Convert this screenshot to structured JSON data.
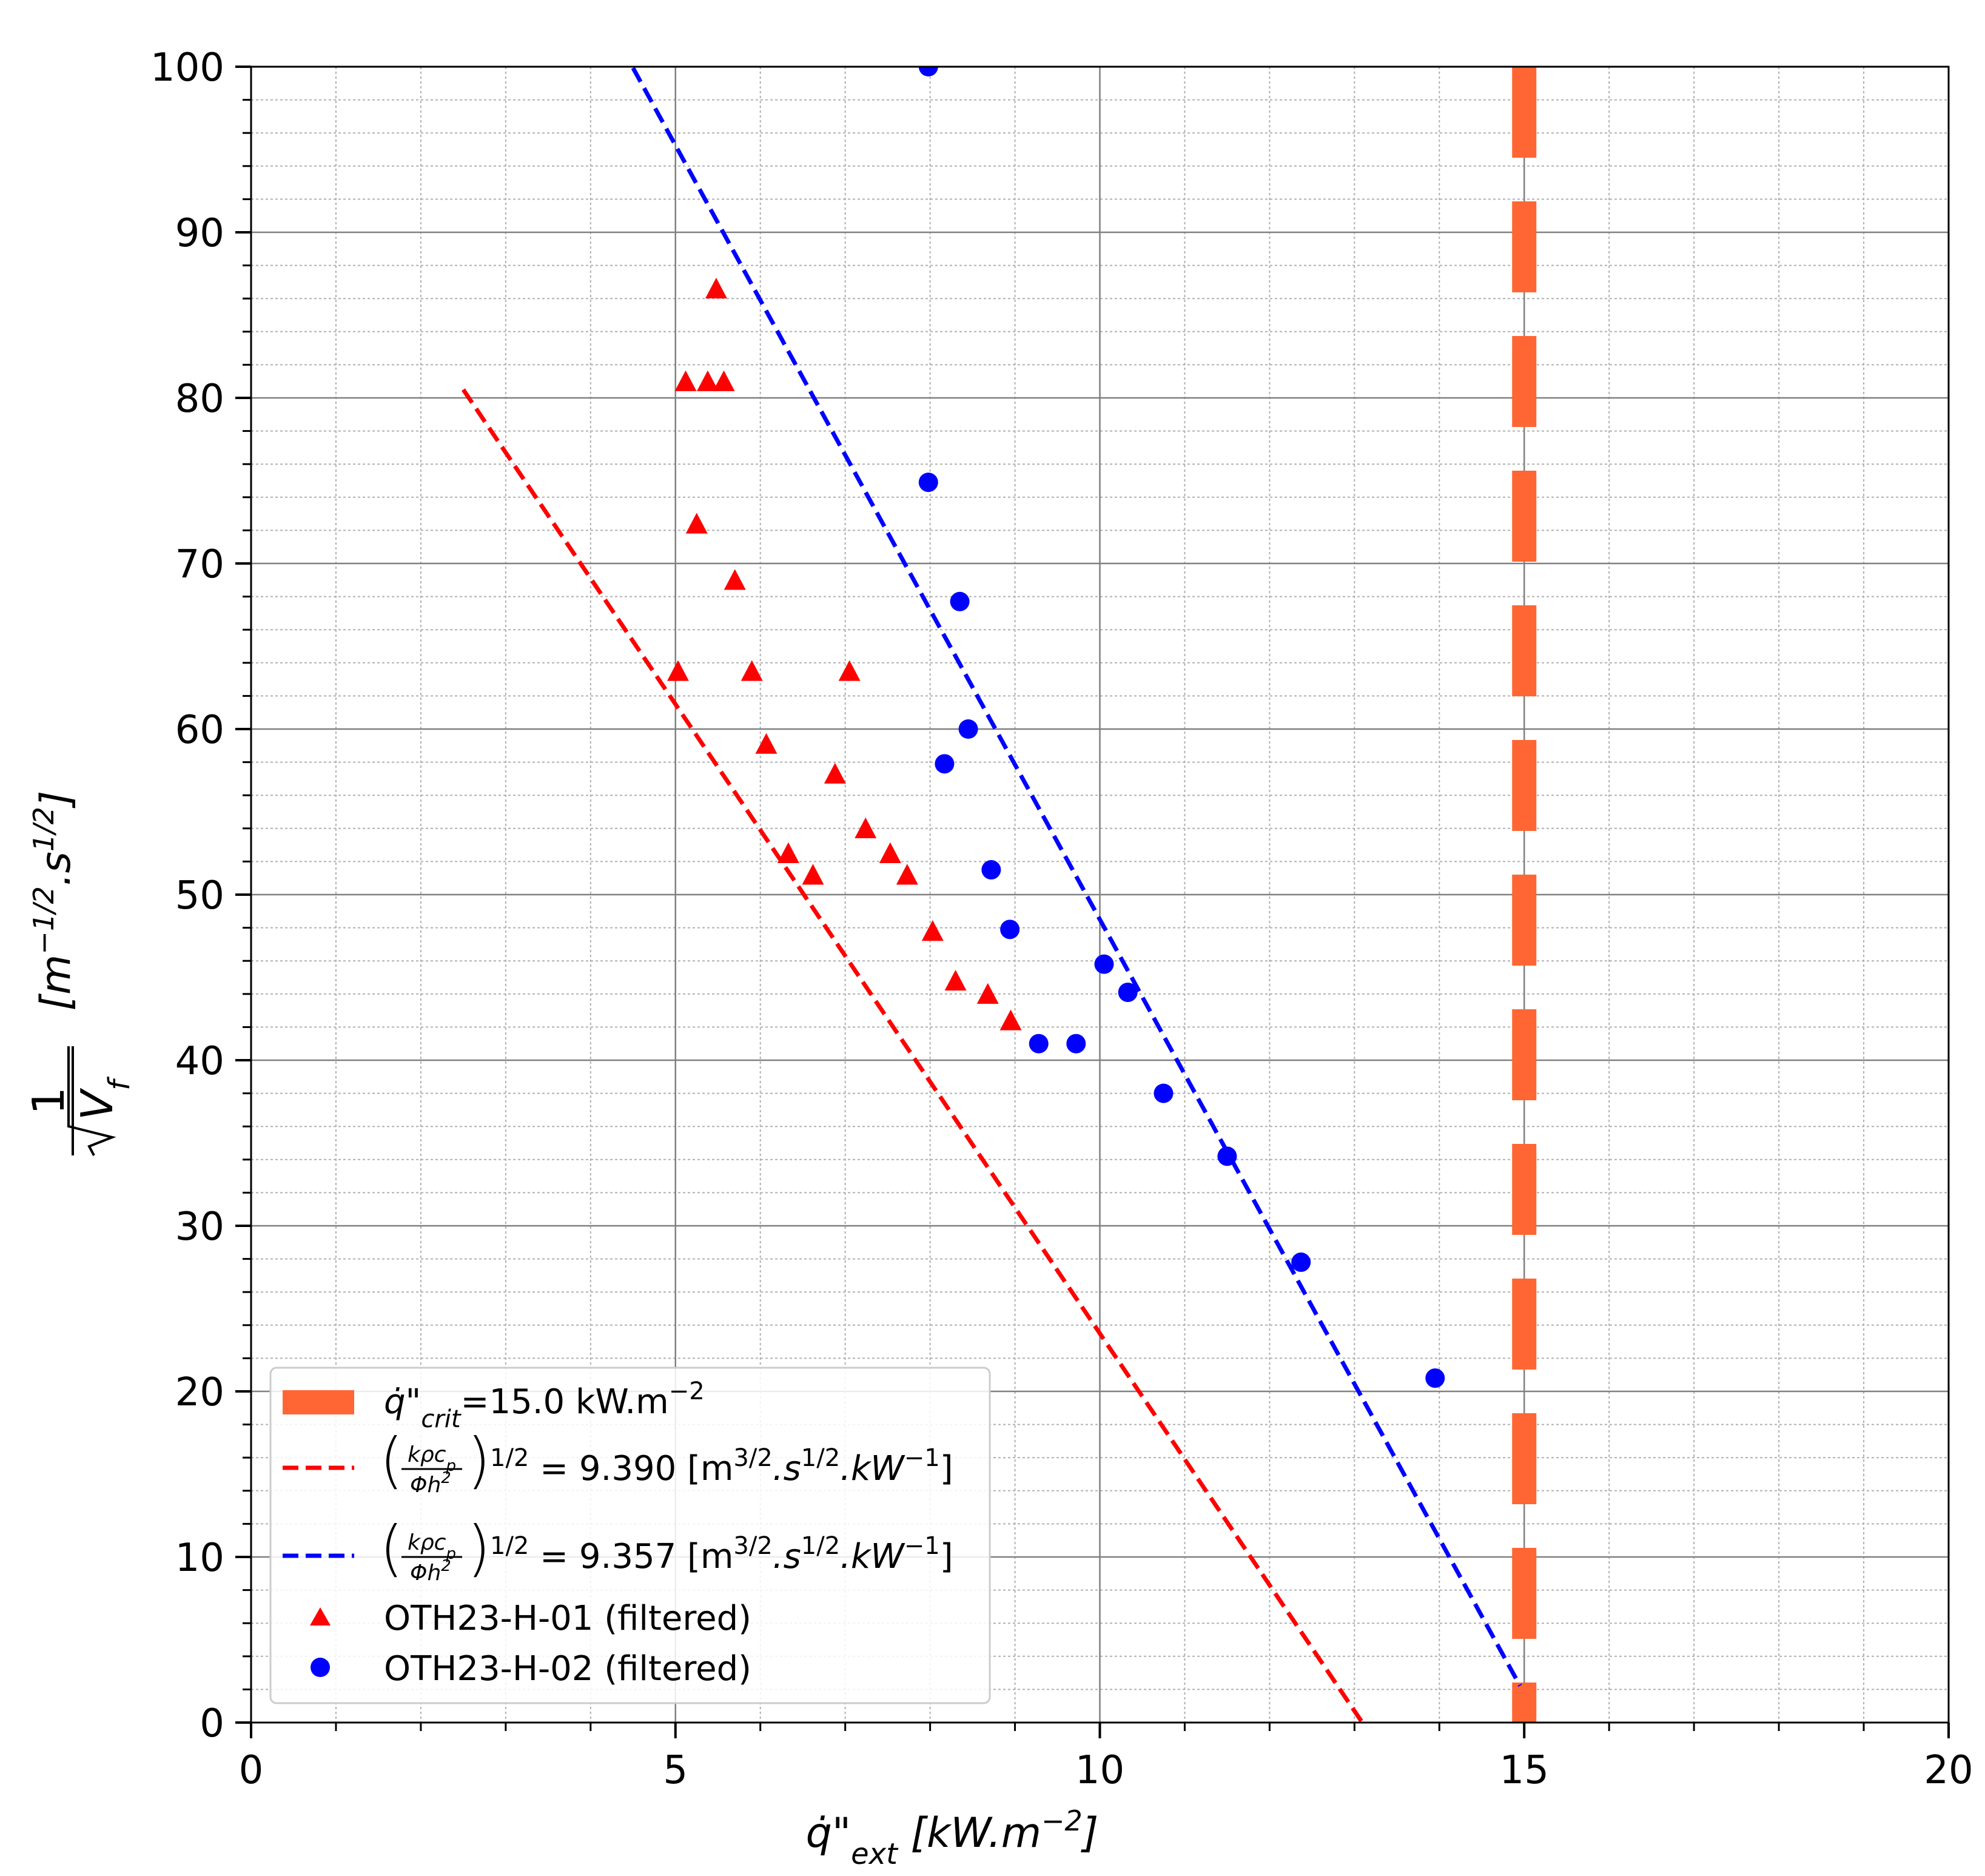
{
  "chart_data": {
    "type": "scatter",
    "title": "",
    "xlabel": {
      "base": "q̇\"",
      "sub": "ext",
      "unit_prefix": " [kW.m",
      "unit_exp": "−2",
      "unit_suffix": "]"
    },
    "ylabel": {
      "numerator": "1",
      "radicand": "V",
      "radicand_sub": "f",
      "unit_open": "[m",
      "unit_exp1": "−1/2",
      "unit_mid": ".s",
      "unit_exp2": "1/2",
      "unit_close": "]"
    },
    "xlim": [
      0,
      20
    ],
    "ylim": [
      0,
      100
    ],
    "x_ticks": [
      0,
      5,
      10,
      15,
      20
    ],
    "x_tick_labels": [
      "0",
      "5",
      "10",
      "15",
      "20"
    ],
    "y_ticks": [
      0,
      10,
      20,
      30,
      40,
      50,
      60,
      70,
      80,
      90,
      100
    ],
    "y_tick_labels": [
      "0",
      "10",
      "20",
      "30",
      "40",
      "50",
      "60",
      "70",
      "80",
      "90",
      "100"
    ],
    "grid": true,
    "legend_position": "lower-left",
    "critical_line": {
      "x": 15.0,
      "color": "#ff6633",
      "label": {
        "base": "q̇\"",
        "sub": "crit",
        "text": "=15.0 kW.m",
        "exp": "−2"
      }
    },
    "fit_lines": [
      {
        "color": "#ff0000",
        "slope": -7.6,
        "intercept": 99.5,
        "x_range": [
          2.5,
          13.1
        ],
        "label": {
          "frac_num": "kρc",
          "frac_num_sub": "p",
          "frac_den": "Φh",
          "frac_den_exp": "2",
          "exp": "1/2",
          "value": " = 9.390 [m",
          "u1": "3/2",
          "u2": ".s",
          "u3": "1/2",
          "u4": ".kW",
          "u5": "−1",
          "close": "]"
        }
      },
      {
        "color": "#0000ff",
        "slope": -9.35,
        "intercept": 142.0,
        "x_range": [
          4.5,
          14.95
        ],
        "label": {
          "frac_num": "kρc",
          "frac_num_sub": "p",
          "frac_den": "Φh",
          "frac_den_exp": "2",
          "exp": "1/2",
          "value": " = 9.357 [m",
          "u1": "3/2",
          "u2": ".s",
          "u3": "1/2",
          "u4": ".kW",
          "u5": "−1",
          "close": "]"
        }
      }
    ],
    "series": [
      {
        "name": "OTH23-H-01 (filtered)",
        "marker": "triangle",
        "color": "#ff0000",
        "points": [
          [
            5.48,
            86.6
          ],
          [
            5.12,
            81.0
          ],
          [
            5.38,
            81.0
          ],
          [
            5.57,
            81.0
          ],
          [
            5.25,
            72.4
          ],
          [
            5.7,
            69.0
          ],
          [
            5.03,
            63.5
          ],
          [
            5.9,
            63.5
          ],
          [
            7.05,
            63.5
          ],
          [
            6.07,
            59.1
          ],
          [
            6.88,
            57.3
          ],
          [
            7.24,
            54.0
          ],
          [
            6.33,
            52.5
          ],
          [
            7.53,
            52.5
          ],
          [
            6.62,
            51.2
          ],
          [
            7.73,
            51.2
          ],
          [
            8.03,
            47.8
          ],
          [
            8.3,
            44.8
          ],
          [
            8.68,
            44.0
          ],
          [
            8.95,
            42.4
          ]
        ]
      },
      {
        "name": "OTH23-H-02 (filtered)",
        "marker": "circle",
        "color": "#0000ff",
        "points": [
          [
            7.98,
            74.9
          ],
          [
            8.35,
            67.7
          ],
          [
            8.45,
            60.0
          ],
          [
            8.17,
            57.9
          ],
          [
            8.72,
            51.5
          ],
          [
            8.94,
            47.9
          ],
          [
            10.05,
            45.8
          ],
          [
            10.33,
            44.1
          ],
          [
            9.28,
            41.0
          ],
          [
            9.72,
            41.0
          ],
          [
            10.75,
            38.0
          ],
          [
            11.5,
            34.2
          ],
          [
            12.37,
            27.8
          ],
          [
            13.95,
            20.8
          ],
          [
            7.98,
            100.0
          ]
        ]
      }
    ]
  }
}
